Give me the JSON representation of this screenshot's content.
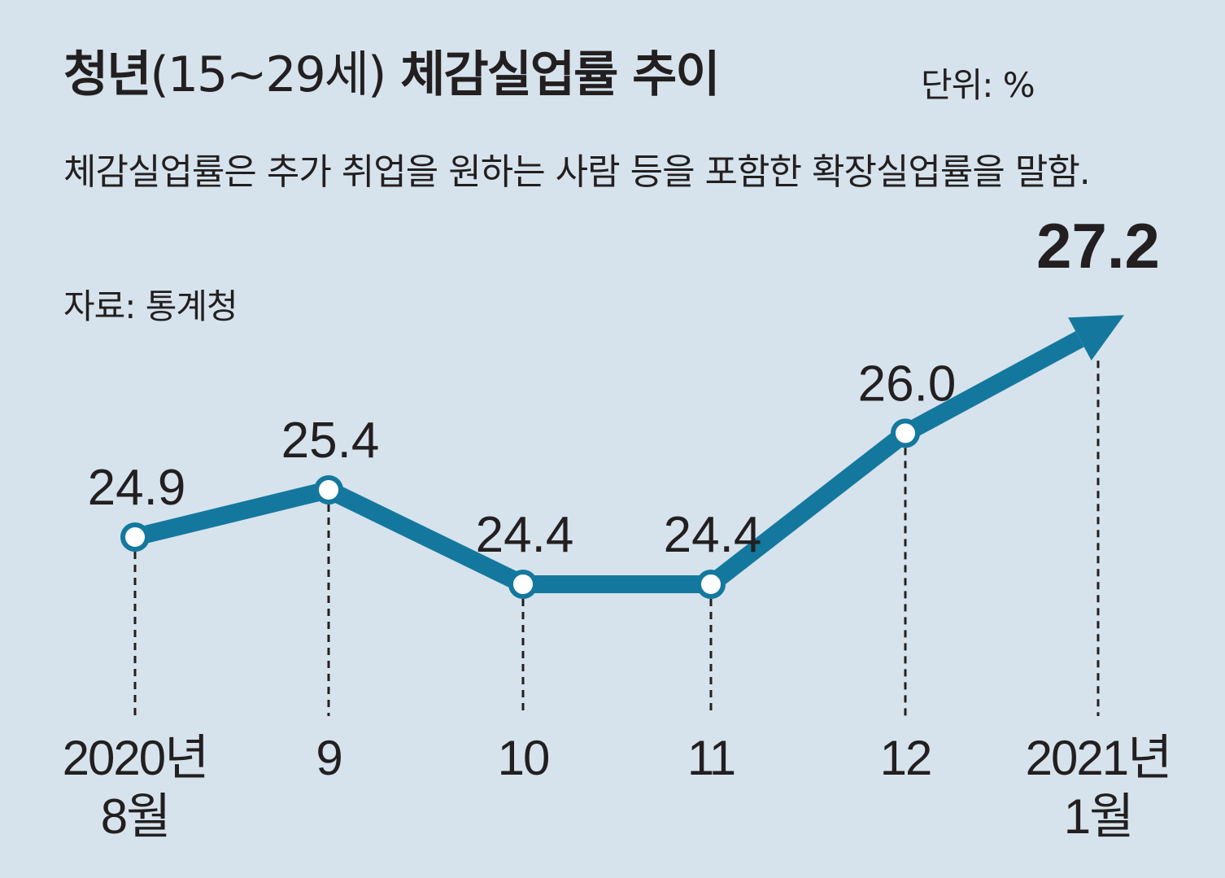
{
  "header": {
    "title_main": "청년",
    "title_paren": "(15~29세)",
    "title_rest": "체감실업률 추이",
    "unit": "단위: %",
    "description": "체감실업률은 추가 취업을 원하는 사람 등을 포함한 확장실업률을 말함.",
    "source": "자료: 통계청"
  },
  "colors": {
    "background": "#d6e3ec",
    "line": "#14789e",
    "marker_fill": "#ffffff",
    "text": "#231f20"
  },
  "chart_data": {
    "type": "line",
    "title": "청년(15~29세) 체감실업률 추이",
    "unit": "%",
    "categories": [
      {
        "line1": "2020년",
        "line2": "8월"
      },
      {
        "line1": "9",
        "line2": ""
      },
      {
        "line1": "10",
        "line2": ""
      },
      {
        "line1": "11",
        "line2": ""
      },
      {
        "line1": "12",
        "line2": ""
      },
      {
        "line1": "2021년",
        "line2": "1월"
      }
    ],
    "series": [
      {
        "name": "청년 체감실업률",
        "values": [
          24.9,
          25.4,
          24.4,
          24.4,
          26.0,
          27.2
        ]
      }
    ],
    "data_labels": [
      "24.9",
      "25.4",
      "24.4",
      "24.4",
      "26.0",
      "27.2"
    ],
    "last_point_style": "arrow",
    "xlabel": "",
    "ylabel": "",
    "grid": false,
    "legend": "none"
  }
}
